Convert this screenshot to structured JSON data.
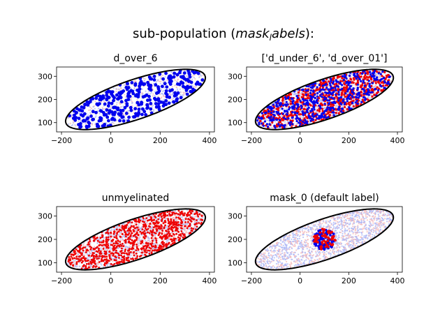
{
  "figure": {
    "suptitle_main": "sub-population (",
    "suptitle_math": "mask",
    "suptitle_sub": "l",
    "suptitle_math2": "abels",
    "suptitle_end": "):"
  },
  "colors": {
    "background_pop_a": "#aab4f5",
    "background_pop_b": "#f5b8b8",
    "highlight_blue": "#0000ee",
    "highlight_red": "#ee0000",
    "ellipse": "#000000"
  },
  "chart_data": [
    {
      "type": "scatter",
      "title": "d_over_6",
      "xlim": [
        -220,
        420
      ],
      "ylim": [
        60,
        340
      ],
      "xticks": [
        -200,
        0,
        200,
        400
      ],
      "yticks": [
        100,
        200,
        300
      ],
      "ellipse": {
        "cx": 100,
        "cy": 200,
        "rx": 300,
        "ry": 85,
        "angle_deg": 20
      },
      "background_density": "sparse",
      "highlight": [
        {
          "color": "#0000ee",
          "count": 330,
          "region": "full",
          "size": 2.4
        }
      ]
    },
    {
      "type": "scatter",
      "title": "['d_under_6', 'd_over_01']",
      "xlim": [
        -220,
        420
      ],
      "ylim": [
        60,
        340
      ],
      "xticks": [
        -200,
        0,
        200,
        400
      ],
      "yticks": [
        100,
        200,
        300
      ],
      "ellipse": {
        "cx": 100,
        "cy": 200,
        "rx": 300,
        "ry": 85,
        "angle_deg": 20
      },
      "background_density": "dense",
      "highlight": [
        {
          "color": "#ee0000",
          "count": 700,
          "region": "full",
          "size": 1.6
        },
        {
          "color": "#0000ee",
          "count": 500,
          "region": "full",
          "size": 1.6
        }
      ]
    },
    {
      "type": "scatter",
      "title": "unmyelinated",
      "xlim": [
        -220,
        420
      ],
      "ylim": [
        60,
        340
      ],
      "xticks": [
        -200,
        0,
        200,
        400
      ],
      "yticks": [
        100,
        200,
        300
      ],
      "ellipse": {
        "cx": 100,
        "cy": 200,
        "rx": 300,
        "ry": 85,
        "angle_deg": 20
      },
      "background_density": "dense",
      "highlight": [
        {
          "color": "#ee0000",
          "count": 900,
          "region": "full",
          "size": 1.4
        }
      ]
    },
    {
      "type": "scatter",
      "title": "mask_0 (default label)",
      "xlim": [
        -220,
        420
      ],
      "ylim": [
        60,
        340
      ],
      "xticks": [
        -200,
        0,
        200,
        400
      ],
      "yticks": [
        100,
        200,
        300
      ],
      "ellipse": {
        "cx": 100,
        "cy": 200,
        "rx": 300,
        "ry": 85,
        "angle_deg": 20
      },
      "background_density": "dense",
      "highlight": [
        {
          "color": "#0000ee",
          "count": 110,
          "region": "disk",
          "disk": {
            "cx": 100,
            "cy": 200,
            "r": 45
          },
          "size": 1.8
        },
        {
          "color": "#ee0000",
          "count": 60,
          "region": "disk",
          "disk": {
            "cx": 100,
            "cy": 200,
            "r": 45
          },
          "size": 1.8
        }
      ]
    }
  ]
}
